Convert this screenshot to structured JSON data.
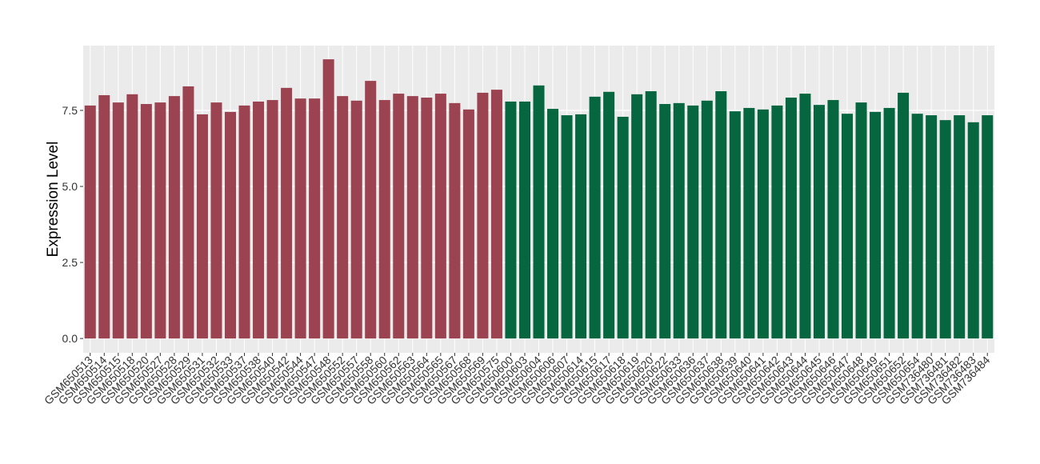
{
  "chart_data": {
    "type": "bar",
    "y_label": "Expression Level",
    "categories": [
      "GSM650513",
      "GSM650514",
      "GSM650515",
      "GSM650518",
      "GSM650520",
      "GSM650527",
      "GSM650528",
      "GSM650529",
      "GSM650531",
      "GSM650532",
      "GSM650533",
      "GSM650537",
      "GSM650538",
      "GSM650540",
      "GSM650542",
      "GSM650544",
      "GSM650547",
      "GSM650548",
      "GSM650552",
      "GSM650557",
      "GSM650558",
      "GSM650560",
      "GSM650562",
      "GSM650563",
      "GSM650564",
      "GSM650565",
      "GSM650567",
      "GSM650568",
      "GSM650569",
      "GSM650575",
      "GSM650600",
      "GSM650603",
      "GSM650604",
      "GSM650606",
      "GSM650607",
      "GSM650614",
      "GSM650615",
      "GSM650617",
      "GSM650618",
      "GSM650619",
      "GSM650620",
      "GSM650622",
      "GSM650633",
      "GSM650636",
      "GSM650637",
      "GSM650638",
      "GSM650639",
      "GSM650640",
      "GSM650641",
      "GSM650642",
      "GSM650643",
      "GSM650644",
      "GSM650645",
      "GSM650646",
      "GSM650647",
      "GSM650648",
      "GSM650649",
      "GSM650651",
      "GSM650652",
      "GSM650654",
      "GSM736480",
      "GSM736481",
      "GSM736482",
      "GSM736483",
      "GSM736484"
    ],
    "values": [
      7.66,
      8.0,
      7.76,
      8.03,
      7.71,
      7.76,
      7.97,
      8.29,
      7.37,
      7.76,
      7.45,
      7.66,
      7.79,
      7.84,
      8.24,
      7.89,
      7.89,
      9.18,
      7.97,
      7.82,
      8.47,
      7.84,
      8.05,
      7.97,
      7.92,
      8.05,
      7.74,
      7.53,
      8.08,
      8.18,
      7.79,
      7.79,
      8.32,
      7.55,
      7.34,
      7.37,
      7.95,
      8.11,
      7.29,
      8.03,
      8.13,
      7.71,
      7.74,
      7.66,
      7.82,
      8.13,
      7.47,
      7.58,
      7.53,
      7.66,
      7.92,
      8.05,
      7.68,
      7.84,
      7.39,
      7.76,
      7.45,
      7.58,
      8.08,
      7.39,
      7.34,
      7.18,
      7.34,
      7.11,
      7.34
    ],
    "colors": [
      "#9b4350",
      "#9b4350",
      "#9b4350",
      "#9b4350",
      "#9b4350",
      "#9b4350",
      "#9b4350",
      "#9b4350",
      "#9b4350",
      "#9b4350",
      "#9b4350",
      "#9b4350",
      "#9b4350",
      "#9b4350",
      "#9b4350",
      "#9b4350",
      "#9b4350",
      "#9b4350",
      "#9b4350",
      "#9b4350",
      "#9b4350",
      "#9b4350",
      "#9b4350",
      "#9b4350",
      "#9b4350",
      "#9b4350",
      "#9b4350",
      "#9b4350",
      "#9b4350",
      "#9b4350",
      "#056640",
      "#056640",
      "#056640",
      "#056640",
      "#056640",
      "#056640",
      "#056640",
      "#056640",
      "#056640",
      "#056640",
      "#056640",
      "#056640",
      "#056640",
      "#056640",
      "#056640",
      "#056640",
      "#056640",
      "#056640",
      "#056640",
      "#056640",
      "#056640",
      "#056640",
      "#056640",
      "#056640",
      "#056640",
      "#056640",
      "#056640",
      "#056640",
      "#056640",
      "#056640",
      "#056640",
      "#056640",
      "#056640",
      "#056640",
      "#056640"
    ],
    "ylim": [
      -0.47,
      9.63
    ],
    "yticks": [
      {
        "value": 0,
        "label": "0.0"
      },
      2.5,
      {
        "value": 5,
        "label": "5.0"
      },
      7.5
    ],
    "grid": true
  }
}
